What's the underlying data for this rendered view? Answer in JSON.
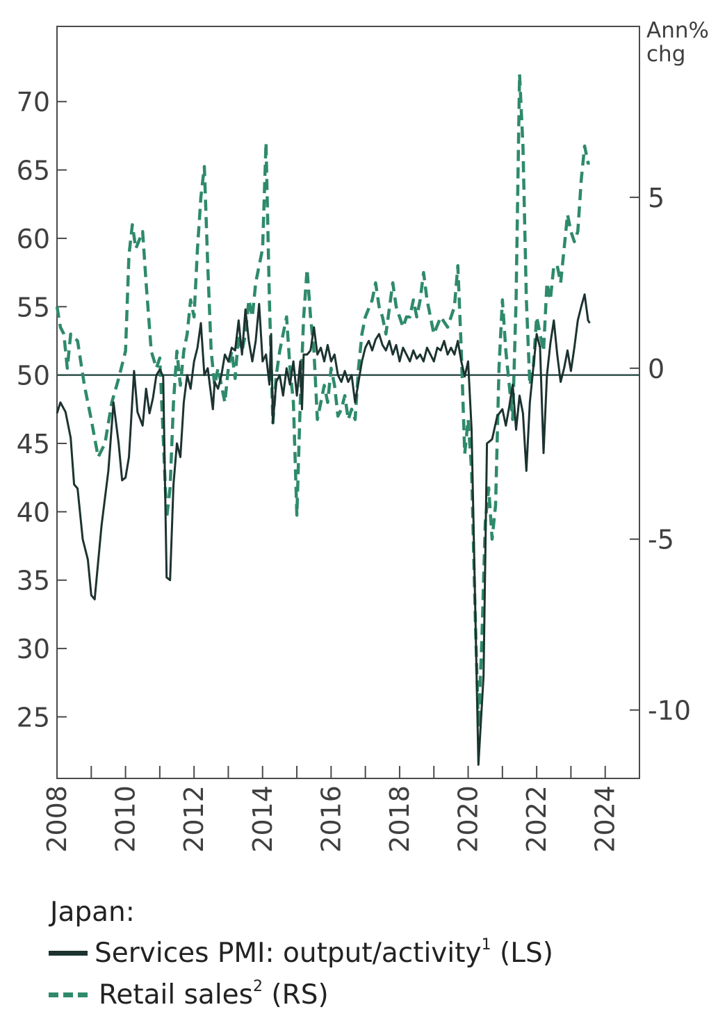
{
  "chart_data": {
    "type": "line",
    "title": "",
    "xlabel": "",
    "right_axis_unit": [
      "Ann%",
      "chg"
    ],
    "x_ticks": [
      "2008",
      "2010",
      "2012",
      "2014",
      "2016",
      "2018",
      "2020",
      "2022",
      "2024"
    ],
    "x_range": [
      2008.0,
      2025.0
    ],
    "left_axis": {
      "ticks": [
        25,
        30,
        35,
        40,
        45,
        50,
        55,
        60,
        65,
        70
      ],
      "range": [
        20.5,
        75.5
      ]
    },
    "right_axis": {
      "ticks": [
        -10,
        -5,
        0,
        5
      ],
      "range": [
        -12,
        10
      ]
    },
    "reference_line": {
      "axis": "left",
      "value": 50
    },
    "legend": {
      "title": "Japan:",
      "items": [
        {
          "label": "Services PMI: output/activity",
          "sup": "1",
          "suffix": "(LS)",
          "style": "solid",
          "color": "#1c3330"
        },
        {
          "label": "Retail sales",
          "sup": "2",
          "suffix": "(RS)",
          "style": "dashed",
          "color": "#2e8a6b"
        }
      ]
    },
    "series": [
      {
        "name": "Services PMI: output/activity",
        "axis": "left",
        "color": "#1c3330",
        "style": "solid",
        "points": [
          [
            2008.0,
            47.2
          ],
          [
            2008.1,
            48.0
          ],
          [
            2008.25,
            47.3
          ],
          [
            2008.4,
            45.4
          ],
          [
            2008.5,
            42.0
          ],
          [
            2008.6,
            41.7
          ],
          [
            2008.75,
            38.0
          ],
          [
            2008.9,
            36.5
          ],
          [
            2009.0,
            33.9
          ],
          [
            2009.1,
            33.6
          ],
          [
            2009.3,
            39.0
          ],
          [
            2009.5,
            43.0
          ],
          [
            2009.65,
            48.0
          ],
          [
            2009.8,
            45.0
          ],
          [
            2009.9,
            42.3
          ],
          [
            2010.0,
            42.5
          ],
          [
            2010.1,
            44.0
          ],
          [
            2010.25,
            50.3
          ],
          [
            2010.35,
            47.3
          ],
          [
            2010.5,
            46.3
          ],
          [
            2010.6,
            49.0
          ],
          [
            2010.7,
            47.2
          ],
          [
            2010.8,
            48.3
          ],
          [
            2010.9,
            50.0
          ],
          [
            2011.0,
            50.4
          ],
          [
            2011.1,
            49.9
          ],
          [
            2011.2,
            35.2
          ],
          [
            2011.3,
            35.0
          ],
          [
            2011.4,
            42.0
          ],
          [
            2011.5,
            45.0
          ],
          [
            2011.6,
            44.0
          ],
          [
            2011.7,
            48.0
          ],
          [
            2011.8,
            50.0
          ],
          [
            2011.9,
            49.0
          ],
          [
            2012.0,
            51.0
          ],
          [
            2012.1,
            52.0
          ],
          [
            2012.2,
            53.8
          ],
          [
            2012.3,
            50.0
          ],
          [
            2012.4,
            50.5
          ],
          [
            2012.5,
            48.5
          ],
          [
            2012.55,
            47.5
          ],
          [
            2012.6,
            49.5
          ],
          [
            2012.7,
            49.0
          ],
          [
            2012.8,
            50.0
          ],
          [
            2012.9,
            51.5
          ],
          [
            2013.0,
            51.0
          ],
          [
            2013.1,
            52.0
          ],
          [
            2013.2,
            51.8
          ],
          [
            2013.3,
            54.0
          ],
          [
            2013.4,
            51.5
          ],
          [
            2013.5,
            54.8
          ],
          [
            2013.6,
            52.5
          ],
          [
            2013.7,
            51.0
          ],
          [
            2013.8,
            52.5
          ],
          [
            2013.9,
            55.2
          ],
          [
            2014.0,
            51.0
          ],
          [
            2014.1,
            51.5
          ],
          [
            2014.2,
            49.3
          ],
          [
            2014.25,
            53.0
          ],
          [
            2014.3,
            46.5
          ],
          [
            2014.4,
            49.5
          ],
          [
            2014.5,
            50.0
          ],
          [
            2014.6,
            48.5
          ],
          [
            2014.7,
            50.5
          ],
          [
            2014.8,
            49.3
          ],
          [
            2014.9,
            51.0
          ],
          [
            2015.0,
            48.5
          ],
          [
            2015.1,
            51.0
          ],
          [
            2015.15,
            47.5
          ],
          [
            2015.2,
            51.5
          ],
          [
            2015.3,
            51.5
          ],
          [
            2015.4,
            51.8
          ],
          [
            2015.5,
            53.5
          ],
          [
            2015.6,
            51.5
          ],
          [
            2015.7,
            52.0
          ],
          [
            2015.8,
            51.0
          ],
          [
            2015.9,
            52.2
          ],
          [
            2016.0,
            51.0
          ],
          [
            2016.1,
            51.5
          ],
          [
            2016.2,
            50.0
          ],
          [
            2016.3,
            49.5
          ],
          [
            2016.4,
            50.3
          ],
          [
            2016.5,
            49.5
          ],
          [
            2016.6,
            50.0
          ],
          [
            2016.7,
            48.0
          ],
          [
            2016.8,
            49.5
          ],
          [
            2016.9,
            51.0
          ],
          [
            2017.0,
            52.0
          ],
          [
            2017.1,
            52.5
          ],
          [
            2017.2,
            51.8
          ],
          [
            2017.3,
            52.6
          ],
          [
            2017.4,
            53.0
          ],
          [
            2017.5,
            52.2
          ],
          [
            2017.6,
            51.8
          ],
          [
            2017.7,
            52.5
          ],
          [
            2017.8,
            51.5
          ],
          [
            2017.9,
            52.2
          ],
          [
            2018.0,
            51.0
          ],
          [
            2018.1,
            52.0
          ],
          [
            2018.2,
            51.5
          ],
          [
            2018.3,
            51.0
          ],
          [
            2018.4,
            51.8
          ],
          [
            2018.5,
            51.2
          ],
          [
            2018.6,
            51.5
          ],
          [
            2018.7,
            51.0
          ],
          [
            2018.8,
            52.0
          ],
          [
            2018.9,
            51.5
          ],
          [
            2019.0,
            51.0
          ],
          [
            2019.1,
            52.0
          ],
          [
            2019.2,
            51.8
          ],
          [
            2019.3,
            52.5
          ],
          [
            2019.4,
            51.5
          ],
          [
            2019.5,
            52.0
          ],
          [
            2019.6,
            51.5
          ],
          [
            2019.7,
            52.5
          ],
          [
            2019.8,
            51.0
          ],
          [
            2019.9,
            49.9
          ],
          [
            2020.0,
            51.0
          ],
          [
            2020.1,
            46.0
          ],
          [
            2020.2,
            33.8
          ],
          [
            2020.3,
            21.5
          ],
          [
            2020.45,
            28.0
          ],
          [
            2020.55,
            45.0
          ],
          [
            2020.7,
            45.3
          ],
          [
            2020.85,
            47.0
          ],
          [
            2021.0,
            47.5
          ],
          [
            2021.1,
            46.3
          ],
          [
            2021.2,
            47.7
          ],
          [
            2021.3,
            49.3
          ],
          [
            2021.4,
            46.0
          ],
          [
            2021.5,
            48.5
          ],
          [
            2021.6,
            47.2
          ],
          [
            2021.7,
            43.0
          ],
          [
            2021.8,
            48.0
          ],
          [
            2021.9,
            50.5
          ],
          [
            2022.0,
            53.0
          ],
          [
            2022.1,
            52.0
          ],
          [
            2022.2,
            44.3
          ],
          [
            2022.3,
            50.0
          ],
          [
            2022.4,
            52.3
          ],
          [
            2022.5,
            54.0
          ],
          [
            2022.6,
            51.5
          ],
          [
            2022.7,
            49.5
          ],
          [
            2022.8,
            50.5
          ],
          [
            2022.9,
            51.8
          ],
          [
            2023.0,
            50.3
          ],
          [
            2023.1,
            52.0
          ],
          [
            2023.2,
            54.0
          ],
          [
            2023.3,
            55.0
          ],
          [
            2023.4,
            55.9
          ],
          [
            2023.5,
            54.0
          ],
          [
            2023.55,
            53.8
          ]
        ]
      },
      {
        "name": "Retail sales",
        "axis": "right",
        "color": "#2e8a6b",
        "style": "dashed",
        "points": [
          [
            2008.0,
            1.8
          ],
          [
            2008.1,
            1.2
          ],
          [
            2008.2,
            1.0
          ],
          [
            2008.3,
            0.0
          ],
          [
            2008.4,
            1.0
          ],
          [
            2008.6,
            0.8
          ],
          [
            2008.8,
            -0.5
          ],
          [
            2009.0,
            -1.5
          ],
          [
            2009.2,
            -2.6
          ],
          [
            2009.4,
            -2.2
          ],
          [
            2009.6,
            -1.0
          ],
          [
            2009.8,
            -0.3
          ],
          [
            2010.0,
            0.5
          ],
          [
            2010.1,
            3.3
          ],
          [
            2010.2,
            4.2
          ],
          [
            2010.3,
            3.5
          ],
          [
            2010.5,
            4.0
          ],
          [
            2010.6,
            2.5
          ],
          [
            2010.75,
            0.5
          ],
          [
            2010.9,
            0.0
          ],
          [
            2011.0,
            0.3
          ],
          [
            2011.1,
            -2.0
          ],
          [
            2011.2,
            -4.4
          ],
          [
            2011.3,
            -3.5
          ],
          [
            2011.4,
            -1.0
          ],
          [
            2011.5,
            0.5
          ],
          [
            2011.6,
            -0.5
          ],
          [
            2011.7,
            0.5
          ],
          [
            2011.8,
            1.0
          ],
          [
            2011.9,
            2.0
          ],
          [
            2012.0,
            1.5
          ],
          [
            2012.1,
            3.5
          ],
          [
            2012.2,
            5.0
          ],
          [
            2012.3,
            5.9
          ],
          [
            2012.4,
            3.0
          ],
          [
            2012.5,
            0.5
          ],
          [
            2012.6,
            -0.5
          ],
          [
            2012.7,
            0.0
          ],
          [
            2012.8,
            -0.5
          ],
          [
            2012.9,
            -1.0
          ],
          [
            2013.0,
            0.0
          ],
          [
            2013.1,
            0.5
          ],
          [
            2013.2,
            -0.3
          ],
          [
            2013.3,
            1.0
          ],
          [
            2013.4,
            0.5
          ],
          [
            2013.5,
            1.0
          ],
          [
            2013.6,
            2.0
          ],
          [
            2013.7,
            1.5
          ],
          [
            2013.8,
            2.5
          ],
          [
            2013.9,
            3.0
          ],
          [
            2014.0,
            3.5
          ],
          [
            2014.1,
            6.6
          ],
          [
            2014.2,
            2.0
          ],
          [
            2014.3,
            -1.6
          ],
          [
            2014.4,
            -0.2
          ],
          [
            2014.5,
            0.5
          ],
          [
            2014.6,
            1.0
          ],
          [
            2014.7,
            1.5
          ],
          [
            2014.8,
            0.0
          ],
          [
            2014.9,
            -1.0
          ],
          [
            2015.0,
            -4.3
          ],
          [
            2015.1,
            -1.0
          ],
          [
            2015.2,
            1.5
          ],
          [
            2015.3,
            2.9
          ],
          [
            2015.4,
            1.5
          ],
          [
            2015.5,
            0.5
          ],
          [
            2015.6,
            -1.5
          ],
          [
            2015.7,
            -1.0
          ],
          [
            2015.8,
            -0.5
          ],
          [
            2015.9,
            -1.0
          ],
          [
            2016.0,
            0.0
          ],
          [
            2016.1,
            -0.5
          ],
          [
            2016.2,
            -1.4
          ],
          [
            2016.3,
            -1.2
          ],
          [
            2016.4,
            -0.8
          ],
          [
            2016.5,
            -1.5
          ],
          [
            2016.6,
            -1.2
          ],
          [
            2016.7,
            -1.5
          ],
          [
            2016.8,
            0.0
          ],
          [
            2016.9,
            1.0
          ],
          [
            2017.0,
            1.5
          ],
          [
            2017.2,
            2.0
          ],
          [
            2017.3,
            2.5
          ],
          [
            2017.4,
            1.8
          ],
          [
            2017.5,
            1.5
          ],
          [
            2017.6,
            1.0
          ],
          [
            2017.8,
            2.5
          ],
          [
            2017.9,
            1.8
          ],
          [
            2018.0,
            1.5
          ],
          [
            2018.1,
            1.2
          ],
          [
            2018.2,
            1.5
          ],
          [
            2018.3,
            1.5
          ],
          [
            2018.4,
            2.0
          ],
          [
            2018.5,
            1.5
          ],
          [
            2018.6,
            2.0
          ],
          [
            2018.7,
            2.8
          ],
          [
            2018.8,
            2.0
          ],
          [
            2018.9,
            1.5
          ],
          [
            2019.0,
            1.0
          ],
          [
            2019.2,
            1.5
          ],
          [
            2019.4,
            1.2
          ],
          [
            2019.6,
            1.8
          ],
          [
            2019.7,
            3.0
          ],
          [
            2019.8,
            0.5
          ],
          [
            2019.9,
            -2.5
          ],
          [
            2020.0,
            -1.5
          ],
          [
            2020.1,
            -3.0
          ],
          [
            2020.2,
            -7.0
          ],
          [
            2020.3,
            -10.5
          ],
          [
            2020.4,
            -8.0
          ],
          [
            2020.5,
            -4.5
          ],
          [
            2020.6,
            -3.5
          ],
          [
            2020.7,
            -5.0
          ],
          [
            2020.8,
            -4.0
          ],
          [
            2020.9,
            0.0
          ],
          [
            2021.0,
            2.0
          ],
          [
            2021.1,
            0.5
          ],
          [
            2021.2,
            -0.5
          ],
          [
            2021.3,
            -1.5
          ],
          [
            2021.4,
            2.0
          ],
          [
            2021.5,
            8.6
          ],
          [
            2021.6,
            6.5
          ],
          [
            2021.7,
            2.0
          ],
          [
            2021.8,
            -0.5
          ],
          [
            2021.9,
            0.0
          ],
          [
            2022.0,
            1.5
          ],
          [
            2022.1,
            1.0
          ],
          [
            2022.2,
            0.5
          ],
          [
            2022.3,
            2.5
          ],
          [
            2022.4,
            2.0
          ],
          [
            2022.5,
            3.0
          ],
          [
            2022.6,
            3.0
          ],
          [
            2022.7,
            2.5
          ],
          [
            2022.8,
            3.5
          ],
          [
            2022.9,
            4.5
          ],
          [
            2023.0,
            4.0
          ],
          [
            2023.1,
            3.7
          ],
          [
            2023.2,
            4.0
          ],
          [
            2023.3,
            5.5
          ],
          [
            2023.4,
            6.5
          ],
          [
            2023.5,
            6.0
          ],
          [
            2023.55,
            6.0
          ]
        ]
      }
    ]
  }
}
